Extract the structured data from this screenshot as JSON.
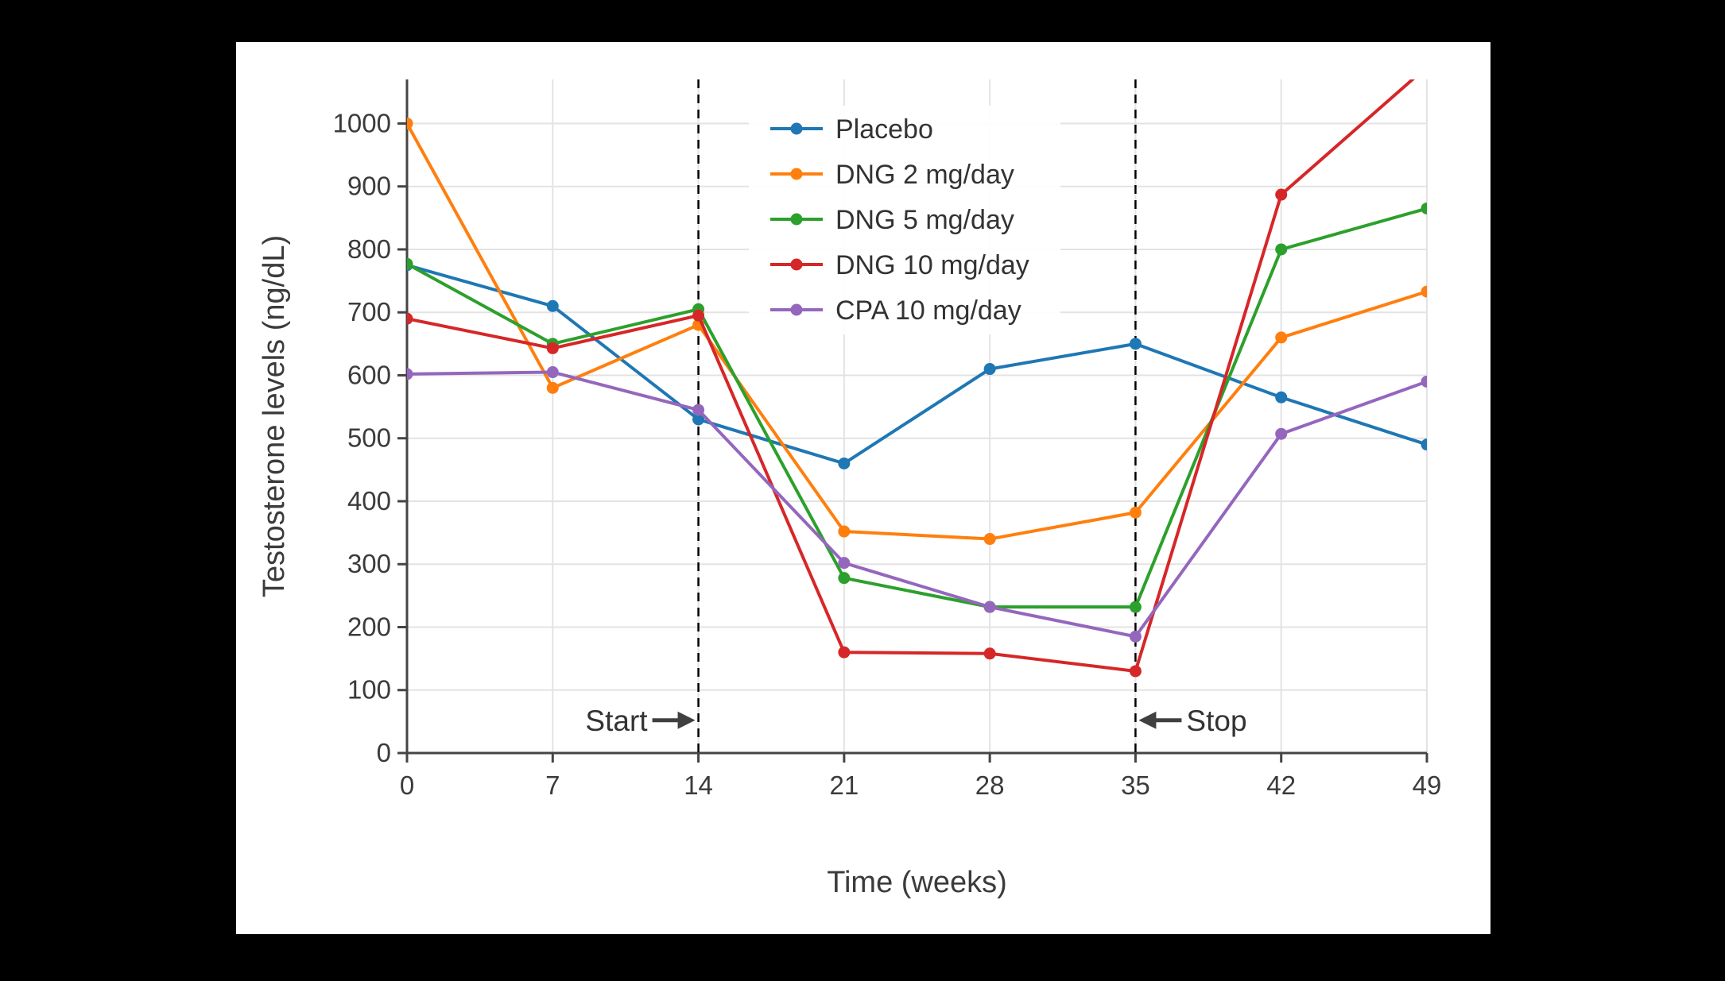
{
  "page": {
    "background_color": "#000000",
    "panel_color": "#ffffff"
  },
  "chart_data": {
    "type": "line",
    "title": "",
    "xlabel": "Time (weeks)",
    "ylabel": "Testosterone levels (ng/dL)",
    "x": [
      0,
      7,
      14,
      21,
      28,
      35,
      42,
      49
    ],
    "xticks": [
      0,
      7,
      14,
      21,
      28,
      35,
      42,
      49
    ],
    "yticks": [
      0,
      100,
      200,
      300,
      400,
      500,
      600,
      700,
      800,
      900,
      1000
    ],
    "xlim": [
      0,
      49
    ],
    "ylim": [
      0,
      1070
    ],
    "grid": true,
    "grid_color": "#e3e3e3",
    "axis_color": "#444444",
    "text_color": "#3b3b3b",
    "annotation_color": "#404040",
    "legend_position": "top-center-inside",
    "series": [
      {
        "name": "Placebo",
        "color": "#1f77b4",
        "values": [
          775,
          710,
          530,
          460,
          610,
          650,
          565,
          490
        ]
      },
      {
        "name": "DNG 2 mg/day",
        "color": "#ff7f0e",
        "values": [
          1000,
          580,
          680,
          352,
          340,
          382,
          660,
          733
        ]
      },
      {
        "name": "DNG 5 mg/day",
        "color": "#2ca02c",
        "values": [
          777,
          650,
          705,
          278,
          232,
          232,
          800,
          865
        ]
      },
      {
        "name": "DNG 10 mg/day",
        "color": "#d62728",
        "values": [
          690,
          643,
          695,
          160,
          158,
          130,
          887,
          1090
        ]
      },
      {
        "name": "CPA 10 mg/day",
        "color": "#9467bd",
        "values": [
          602,
          605,
          545,
          302,
          232,
          185,
          507,
          590
        ]
      }
    ],
    "vlines": [
      {
        "x": 14,
        "style": "dashed",
        "color": "#000000"
      },
      {
        "x": 35,
        "style": "dashed",
        "color": "#000000"
      }
    ],
    "annotations": [
      {
        "x": 14,
        "y": 52,
        "label": "Start",
        "arrow_direction": "right"
      },
      {
        "x": 35,
        "y": 52,
        "label": "Stop",
        "arrow_direction": "left"
      }
    ]
  }
}
